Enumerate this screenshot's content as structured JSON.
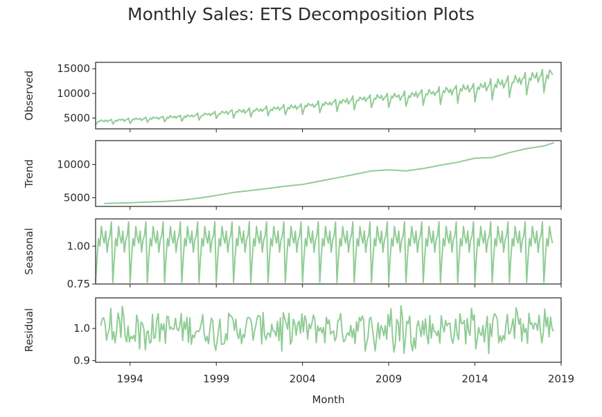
{
  "chart_data": {
    "type": "line",
    "title": "Monthly Sales: ETS Decomposition Plots",
    "xlabel": "Month",
    "x_ticks": [
      "1994",
      "1999",
      "2004",
      "2009",
      "2014",
      "2019"
    ],
    "xlim": [
      1992.0,
      2019.0
    ],
    "line_color": "#84c68a",
    "panels": [
      {
        "name": "Observed",
        "ylabel": "Observed",
        "ylim": [
          2800,
          16300
        ],
        "y_ticks": [
          5000,
          10000,
          15000
        ],
        "y_tick_labels": [
          "5000",
          "10000",
          "15000"
        ],
        "yearly_means": [
          [
            1992,
            4200
          ],
          [
            1993,
            4350
          ],
          [
            1994,
            4550
          ],
          [
            1995,
            4750
          ],
          [
            1996,
            4950
          ],
          [
            1997,
            5150
          ],
          [
            1998,
            5400
          ],
          [
            1999,
            5750
          ],
          [
            2000,
            6050
          ],
          [
            2001,
            6300
          ],
          [
            2002,
            6550
          ],
          [
            2003,
            6850
          ],
          [
            2004,
            7100
          ],
          [
            2005,
            7500
          ],
          [
            2006,
            7900
          ],
          [
            2007,
            8300
          ],
          [
            2008,
            8750
          ],
          [
            2009,
            8900
          ],
          [
            2010,
            9100
          ],
          [
            2011,
            9500
          ],
          [
            2012,
            9900
          ],
          [
            2013,
            10300
          ],
          [
            2014,
            10700
          ],
          [
            2015,
            11200
          ],
          [
            2016,
            11800
          ],
          [
            2017,
            12400
          ],
          [
            2018,
            13100
          ],
          [
            2019,
            13600
          ]
        ]
      },
      {
        "name": "Trend",
        "ylabel": "Trend",
        "ylim": [
          3700,
          13600
        ],
        "y_ticks": [
          5000,
          10000
        ],
        "y_tick_labels": [
          "5000",
          "10000"
        ],
        "points": [
          [
            1992.5,
            4150
          ],
          [
            1994,
            4250
          ],
          [
            1995,
            4350
          ],
          [
            1996,
            4450
          ],
          [
            1997,
            4650
          ],
          [
            1998,
            4950
          ],
          [
            1999,
            5350
          ],
          [
            2000,
            5800
          ],
          [
            2001,
            6100
          ],
          [
            2002,
            6400
          ],
          [
            2003,
            6750
          ],
          [
            2004,
            7000
          ],
          [
            2005,
            7500
          ],
          [
            2006,
            8000
          ],
          [
            2007,
            8500
          ],
          [
            2008,
            9050
          ],
          [
            2009,
            9200
          ],
          [
            2010,
            9050
          ],
          [
            2011,
            9400
          ],
          [
            2012,
            9900
          ],
          [
            2013,
            10350
          ],
          [
            2014,
            10950
          ],
          [
            2015,
            11050
          ],
          [
            2016,
            11800
          ],
          [
            2017,
            12400
          ],
          [
            2018,
            12800
          ],
          [
            2018.6,
            13300
          ]
        ]
      },
      {
        "name": "Seasonal",
        "ylabel": "Seasonal",
        "ylim": [
          0.75,
          1.18
        ],
        "y_ticks": [
          0.75,
          1.0
        ],
        "y_tick_labels": [
          "0.75",
          "1.00"
        ],
        "monthly_pattern": [
          0.76,
          0.92,
          1.05,
          1.0,
          1.13,
          1.06,
          1.02,
          1.1,
          0.96,
          1.04,
          1.07,
          1.16
        ]
      },
      {
        "name": "Residual",
        "ylabel": "Residual",
        "ylim": [
          0.895,
          1.095
        ],
        "y_ticks": [
          0.9,
          1.0
        ],
        "y_tick_labels": [
          "0.9",
          "1.0"
        ],
        "band": [
          0.95,
          1.05
        ],
        "extremes": [
          0.905,
          1.085
        ]
      }
    ]
  }
}
